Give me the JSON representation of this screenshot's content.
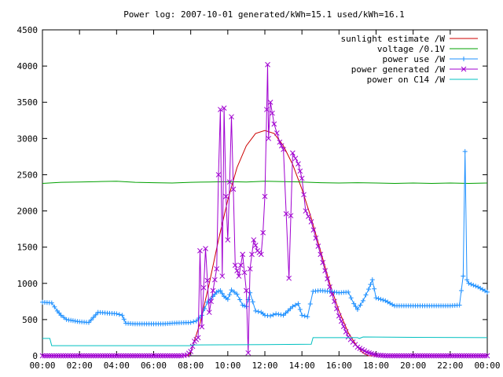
{
  "chart_data": {
    "type": "line",
    "title": "Power log: 2007-10-01 generated/kWh=15.1 used/kWh=16.1",
    "xlabel": "",
    "ylabel": "",
    "ylim": [
      0,
      4500
    ],
    "xlim": [
      "00:00",
      "24:00"
    ],
    "grid": false,
    "legend_position": "top-right",
    "x_ticks": [
      "00:00",
      "02:00",
      "04:00",
      "06:00",
      "08:00",
      "10:00",
      "12:00",
      "14:00",
      "16:00",
      "18:00",
      "20:00",
      "22:00",
      "00:00"
    ],
    "y_ticks": [
      0,
      500,
      1000,
      1500,
      2000,
      2500,
      3000,
      3500,
      4000,
      4500
    ],
    "series": [
      {
        "name": "sunlight estimate /W",
        "color": "#cc0000",
        "marker": "none",
        "points": [
          [
            0,
            0
          ],
          [
            7.85,
            0
          ],
          [
            8.0,
            50
          ],
          [
            8.5,
            450
          ],
          [
            9.0,
            1000
          ],
          [
            9.5,
            1600
          ],
          [
            10.0,
            2150
          ],
          [
            10.5,
            2600
          ],
          [
            11.0,
            2900
          ],
          [
            11.5,
            3070
          ],
          [
            12.0,
            3110
          ],
          [
            12.5,
            3070
          ],
          [
            13.0,
            2900
          ],
          [
            13.5,
            2640
          ],
          [
            14.0,
            2300
          ],
          [
            14.5,
            1900
          ],
          [
            15.0,
            1450
          ],
          [
            15.5,
            1000
          ],
          [
            16.0,
            620
          ],
          [
            16.5,
            320
          ],
          [
            17.0,
            120
          ],
          [
            17.3,
            40
          ],
          [
            17.6,
            0
          ],
          [
            24,
            0
          ]
        ]
      },
      {
        "name": "voltage /0.1V",
        "color": "#00a000",
        "marker": "none",
        "points": [
          [
            0,
            2380
          ],
          [
            1,
            2395
          ],
          [
            2,
            2400
          ],
          [
            3,
            2405
          ],
          [
            4,
            2410
          ],
          [
            5,
            2395
          ],
          [
            6,
            2390
          ],
          [
            7,
            2385
          ],
          [
            8,
            2395
          ],
          [
            9,
            2400
          ],
          [
            10,
            2405
          ],
          [
            11,
            2400
          ],
          [
            12,
            2410
          ],
          [
            13,
            2405
          ],
          [
            14,
            2400
          ],
          [
            15,
            2390
          ],
          [
            16,
            2385
          ],
          [
            17,
            2390
          ],
          [
            18,
            2385
          ],
          [
            19,
            2380
          ],
          [
            20,
            2385
          ],
          [
            21,
            2380
          ],
          [
            22,
            2385
          ],
          [
            23,
            2380
          ],
          [
            24,
            2385
          ]
        ]
      },
      {
        "name": "power use /W",
        "color": "#1e90ff",
        "marker": "plus",
        "points": [
          [
            0,
            740
          ],
          [
            0.5,
            730
          ],
          [
            0.8,
            620
          ],
          [
            1.0,
            560
          ],
          [
            1.3,
            500
          ],
          [
            2.0,
            470
          ],
          [
            2.5,
            460
          ],
          [
            3.0,
            600
          ],
          [
            3.5,
            590
          ],
          [
            4.0,
            580
          ],
          [
            4.3,
            560
          ],
          [
            4.5,
            450
          ],
          [
            5.0,
            440
          ],
          [
            5.5,
            440
          ],
          [
            6.0,
            440
          ],
          [
            6.5,
            440
          ],
          [
            7.0,
            450
          ],
          [
            7.5,
            455
          ],
          [
            8.0,
            460
          ],
          [
            8.3,
            480
          ],
          [
            8.6,
            560
          ],
          [
            8.9,
            740
          ],
          [
            9.2,
            820
          ],
          [
            9.4,
            880
          ],
          [
            9.6,
            900
          ],
          [
            9.8,
            820
          ],
          [
            10.0,
            780
          ],
          [
            10.2,
            910
          ],
          [
            10.5,
            850
          ],
          [
            10.8,
            700
          ],
          [
            11.0,
            680
          ],
          [
            11.2,
            870
          ],
          [
            11.5,
            620
          ],
          [
            11.8,
            600
          ],
          [
            12.0,
            560
          ],
          [
            12.3,
            550
          ],
          [
            12.6,
            580
          ],
          [
            13.0,
            560
          ],
          [
            13.5,
            680
          ],
          [
            13.8,
            720
          ],
          [
            14.0,
            560
          ],
          [
            14.3,
            540
          ],
          [
            14.6,
            890
          ],
          [
            15.0,
            900
          ],
          [
            15.5,
            890
          ],
          [
            16.0,
            870
          ],
          [
            16.5,
            880
          ],
          [
            16.8,
            720
          ],
          [
            17.0,
            640
          ],
          [
            17.3,
            760
          ],
          [
            17.6,
            920
          ],
          [
            17.8,
            1050
          ],
          [
            18.0,
            800
          ],
          [
            18.5,
            760
          ],
          [
            19.0,
            690
          ],
          [
            20.0,
            690
          ],
          [
            21.0,
            690
          ],
          [
            22.0,
            690
          ],
          [
            22.5,
            700
          ],
          [
            22.7,
            1100
          ],
          [
            22.8,
            2820
          ],
          [
            22.9,
            1050
          ],
          [
            23.0,
            1000
          ],
          [
            23.5,
            950
          ],
          [
            24.0,
            880
          ]
        ]
      },
      {
        "name": "power generated /W",
        "color": "#a000d0",
        "marker": "cross",
        "points": [
          [
            0,
            0
          ],
          [
            7.5,
            0
          ],
          [
            7.8,
            10
          ],
          [
            8.0,
            60
          ],
          [
            8.2,
            200
          ],
          [
            8.4,
            250
          ],
          [
            8.5,
            1450
          ],
          [
            8.6,
            400
          ],
          [
            8.8,
            1480
          ],
          [
            9.0,
            600
          ],
          [
            9.2,
            900
          ],
          [
            9.4,
            1200
          ],
          [
            9.5,
            2500
          ],
          [
            9.6,
            3400
          ],
          [
            9.7,
            1100
          ],
          [
            9.8,
            3420
          ],
          [
            9.9,
            2200
          ],
          [
            10.0,
            1600
          ],
          [
            10.1,
            2400
          ],
          [
            10.2,
            3300
          ],
          [
            10.3,
            2300
          ],
          [
            10.4,
            1250
          ],
          [
            10.6,
            1100
          ],
          [
            10.8,
            1400
          ],
          [
            11.0,
            900
          ],
          [
            11.1,
            40
          ],
          [
            11.2,
            1200
          ],
          [
            11.4,
            1600
          ],
          [
            11.6,
            1450
          ],
          [
            11.8,
            1400
          ],
          [
            11.9,
            1700
          ],
          [
            12.0,
            2200
          ],
          [
            12.1,
            3400
          ],
          [
            12.15,
            4020
          ],
          [
            12.2,
            3000
          ],
          [
            12.3,
            3500
          ],
          [
            12.5,
            3200
          ],
          [
            12.8,
            2950
          ],
          [
            13.0,
            2850
          ],
          [
            13.3,
            1070
          ],
          [
            13.5,
            2800
          ],
          [
            13.8,
            2650
          ],
          [
            14.0,
            2450
          ],
          [
            14.2,
            2000
          ],
          [
            14.5,
            1850
          ],
          [
            15.0,
            1400
          ],
          [
            15.5,
            950
          ],
          [
            16.0,
            550
          ],
          [
            16.5,
            260
          ],
          [
            17.0,
            120
          ],
          [
            17.5,
            50
          ],
          [
            18.0,
            10
          ],
          [
            18.5,
            0
          ],
          [
            24,
            0
          ]
        ]
      },
      {
        "name": "power on C14 /W",
        "color": "#00c0c0",
        "marker": "none",
        "points": [
          [
            0,
            240
          ],
          [
            0.4,
            240
          ],
          [
            0.5,
            140
          ],
          [
            5.0,
            140
          ],
          [
            8.0,
            140
          ],
          [
            8.1,
            150
          ],
          [
            12.0,
            155
          ],
          [
            14.5,
            160
          ],
          [
            14.6,
            250
          ],
          [
            17.0,
            250
          ],
          [
            17.1,
            240
          ],
          [
            17.3,
            260
          ],
          [
            20.0,
            255
          ],
          [
            24.0,
            250
          ]
        ]
      }
    ]
  }
}
